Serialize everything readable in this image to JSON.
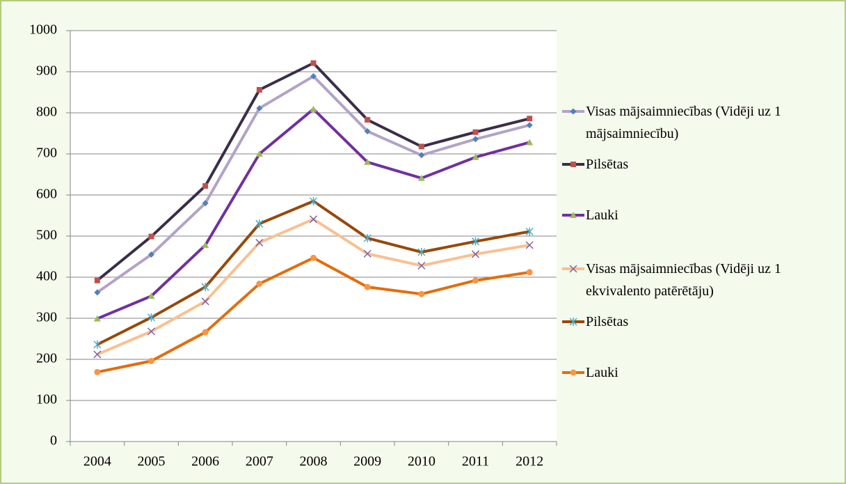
{
  "chart_data": {
    "type": "line",
    "categories": [
      "2004",
      "2005",
      "2006",
      "2007",
      "2008",
      "2009",
      "2010",
      "2011",
      "2012"
    ],
    "series": [
      {
        "name": "Visas mājsaimniecības (Vidēji uz 1 mājsaimniecību)",
        "color": "#b3a2c7",
        "marker": "diamond",
        "marker_color": "#4f81bd",
        "values": [
          363,
          455,
          580,
          811,
          889,
          755,
          697,
          736,
          770
        ]
      },
      {
        "name": "Pilsētas",
        "color": "#3b2d48",
        "marker": "square",
        "marker_color": "#c0504d",
        "values": [
          392,
          499,
          622,
          856,
          921,
          783,
          718,
          753,
          786
        ]
      },
      {
        "name": "Lauki",
        "color": "#7030a0",
        "marker": "triangle",
        "marker_color": "#9bbb59",
        "values": [
          299,
          354,
          478,
          700,
          809,
          680,
          641,
          692,
          728
        ]
      },
      {
        "name": "Visas mājsaimniecības (Vidēji uz 1 ekvivalento patērētāju)",
        "color": "#fac090",
        "marker": "x",
        "marker_color": "#8064a2",
        "values": [
          212,
          268,
          341,
          484,
          541,
          457,
          428,
          456,
          478
        ]
      },
      {
        "name": "Pilsētas",
        "color": "#984807",
        "marker": "star",
        "marker_color": "#4bacc6",
        "values": [
          236,
          302,
          376,
          530,
          585,
          495,
          461,
          487,
          511
        ]
      },
      {
        "name": "Lauki",
        "color": "#e46c0a",
        "marker": "circle",
        "marker_color": "#f79646",
        "values": [
          169,
          196,
          266,
          384,
          447,
          376,
          359,
          392,
          412
        ]
      }
    ],
    "ylim": [
      0,
      1000
    ],
    "yticks": [
      0,
      100,
      200,
      300,
      400,
      500,
      600,
      700,
      800,
      900,
      1000
    ],
    "grid": true,
    "legend": "right"
  }
}
